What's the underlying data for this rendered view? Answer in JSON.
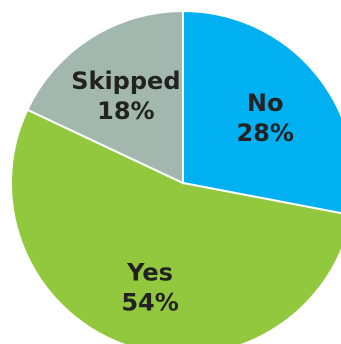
{
  "chart_data": {
    "type": "pie",
    "title": "",
    "start_angle_deg": 0,
    "direction": "clockwise",
    "slices": [
      {
        "label": "No",
        "value": 28,
        "value_label": "28%",
        "color": "#00B0F0"
      },
      {
        "label": "Yes",
        "value": 54,
        "value_label": "54%",
        "color": "#92C83E"
      },
      {
        "label": "Skipped",
        "value": 18,
        "value_label": "18%",
        "color": "#A2B8AE"
      }
    ]
  }
}
